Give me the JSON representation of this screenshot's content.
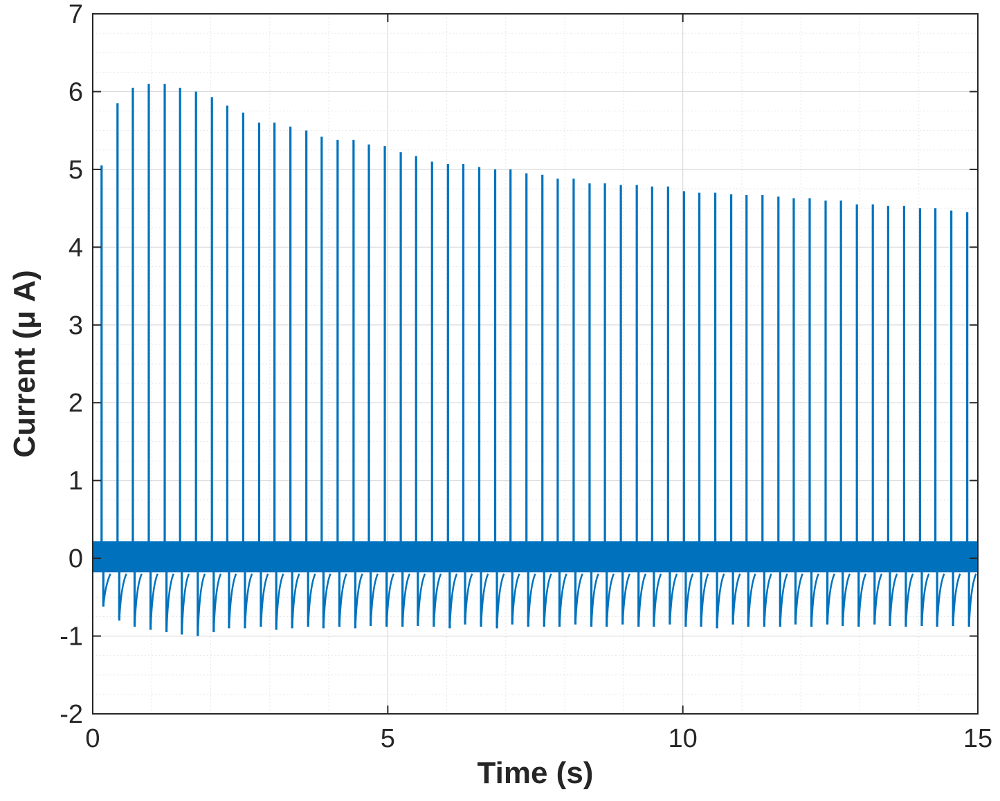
{
  "chart_data": {
    "type": "line",
    "title": "",
    "xlabel": "Time (s)",
    "ylabel": "Current (μ A)",
    "xlim": [
      0,
      15
    ],
    "ylim": [
      -2,
      7
    ],
    "xticks": [
      0,
      5,
      10,
      15
    ],
    "yticks": [
      -2,
      -1,
      0,
      1,
      2,
      3,
      4,
      5,
      6,
      7
    ],
    "xtick_labels": [
      "0",
      "5",
      "10",
      "15"
    ],
    "ytick_labels": [
      "-2",
      "-1",
      "0",
      "1",
      "2",
      "3",
      "4",
      "5",
      "6",
      "7"
    ],
    "grid": true,
    "minor_grid": true,
    "line_color": "#0072BD",
    "baseline_noise_band": [
      -0.18,
      0.22
    ],
    "series": [
      {
        "pulse_times": [
          0.15,
          0.42,
          0.68,
          0.95,
          1.22,
          1.48,
          1.75,
          2.02,
          2.28,
          2.55,
          2.82,
          3.08,
          3.35,
          3.62,
          3.88,
          4.15,
          4.42,
          4.68,
          4.95,
          5.22,
          5.48,
          5.75,
          6.02,
          6.28,
          6.55,
          6.82,
          7.08,
          7.35,
          7.62,
          7.88,
          8.15,
          8.42,
          8.68,
          8.95,
          9.22,
          9.48,
          9.75,
          10.02,
          10.28,
          10.55,
          10.82,
          11.08,
          11.35,
          11.62,
          11.88,
          12.15,
          12.42,
          12.68,
          12.95,
          13.22,
          13.48,
          13.75,
          14.02,
          14.28,
          14.55,
          14.82
        ],
        "peak_values": [
          5.05,
          5.85,
          6.05,
          6.1,
          6.1,
          6.05,
          6.0,
          5.93,
          5.82,
          5.73,
          5.6,
          5.6,
          5.55,
          5.5,
          5.42,
          5.38,
          5.38,
          5.32,
          5.3,
          5.22,
          5.17,
          5.1,
          5.07,
          5.07,
          5.03,
          5.0,
          5.0,
          4.95,
          4.93,
          4.88,
          4.88,
          4.82,
          4.82,
          4.8,
          4.8,
          4.78,
          4.78,
          4.72,
          4.7,
          4.7,
          4.68,
          4.67,
          4.67,
          4.65,
          4.63,
          4.63,
          4.6,
          4.6,
          4.55,
          4.55,
          4.53,
          4.53,
          4.5,
          4.5,
          4.47,
          4.45
        ],
        "trough_values": [
          -0.62,
          -0.8,
          -0.88,
          -0.92,
          -0.95,
          -0.98,
          -1.0,
          -0.95,
          -0.9,
          -0.9,
          -0.88,
          -0.92,
          -0.9,
          -0.88,
          -0.9,
          -0.88,
          -0.9,
          -0.87,
          -0.88,
          -0.88,
          -0.87,
          -0.88,
          -0.9,
          -0.85,
          -0.88,
          -0.9,
          -0.85,
          -0.88,
          -0.88,
          -0.88,
          -0.85,
          -0.88,
          -0.88,
          -0.85,
          -0.88,
          -0.88,
          -0.85,
          -0.88,
          -0.88,
          -0.9,
          -0.85,
          -0.88,
          -0.88,
          -0.88,
          -0.85,
          -0.88,
          -0.85,
          -0.87,
          -0.88,
          -0.85,
          -0.87,
          -0.88,
          -0.87,
          -0.88,
          -0.87,
          -0.88
        ]
      }
    ]
  }
}
